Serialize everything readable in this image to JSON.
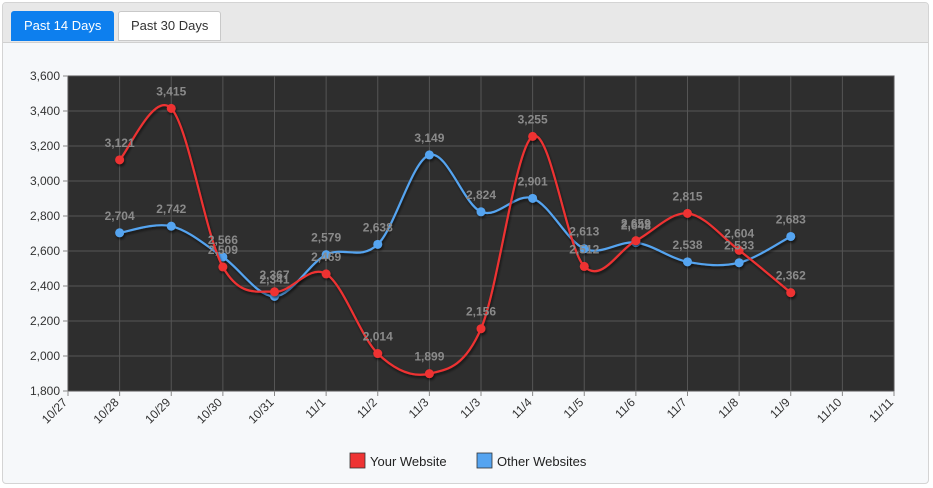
{
  "tabs": [
    {
      "label": "Past 14 Days",
      "active": true
    },
    {
      "label": "Past 30 Days",
      "active": false
    }
  ],
  "chart_data": {
    "type": "line",
    "title": "",
    "xlabel": "",
    "ylabel": "",
    "x_ticks": [
      "10/27",
      "10/28",
      "10/29",
      "10/30",
      "10/31",
      "11/1",
      "11/2",
      "11/3",
      "11/3",
      "11/4",
      "11/5",
      "11/6",
      "11/7",
      "11/8",
      "11/9",
      "11/10",
      "11/11"
    ],
    "ylim": [
      1800,
      3600
    ],
    "y_ticks": [
      "1,800",
      "2,000",
      "2,200",
      "2,400",
      "2,600",
      "2,800",
      "3,000",
      "3,200",
      "3,400",
      "3,600"
    ],
    "grid": true,
    "legend_position": "bottom",
    "series": [
      {
        "name": "Your Website",
        "color": "#ee3333",
        "x": [
          "10/28",
          "10/29",
          "10/30",
          "10/31",
          "11/1",
          "11/2",
          "11/3",
          "11/3",
          "11/4",
          "11/5",
          "11/6",
          "11/7",
          "11/8",
          "11/9"
        ],
        "values": [
          3121,
          3415,
          2509,
          2367,
          2469,
          2014,
          1899,
          2156,
          3255,
          2512,
          2659,
          2815,
          2604,
          2362
        ],
        "labels": [
          "3,121",
          "3,415",
          "2,509",
          "2,367",
          "2,469",
          "2,014",
          "1,899",
          "2,156",
          "3,255",
          "2,512",
          "2,659",
          "2,815",
          "2,604",
          "2,362"
        ]
      },
      {
        "name": "Other Websites",
        "color": "#55a4f0",
        "x": [
          "10/28",
          "10/29",
          "10/30",
          "10/31",
          "11/1",
          "11/2",
          "11/3",
          "11/3",
          "11/4",
          "11/5",
          "11/6",
          "11/7",
          "11/8",
          "11/9"
        ],
        "values": [
          2704,
          2742,
          2566,
          2341,
          2579,
          2638,
          3149,
          2824,
          2901,
          2613,
          2648,
          2538,
          2533,
          2683
        ],
        "labels": [
          "2,704",
          "2,742",
          "2,566",
          "2,341",
          "2,579",
          "2,638",
          "3,149",
          "2,824",
          "2,901",
          "2,613",
          "2,648",
          "2,538",
          "2,533",
          "2,683"
        ]
      }
    ]
  },
  "colors": {
    "plot_background": "#2e2e2e",
    "grid": "#555555",
    "active_tab": "#0d7fee"
  }
}
